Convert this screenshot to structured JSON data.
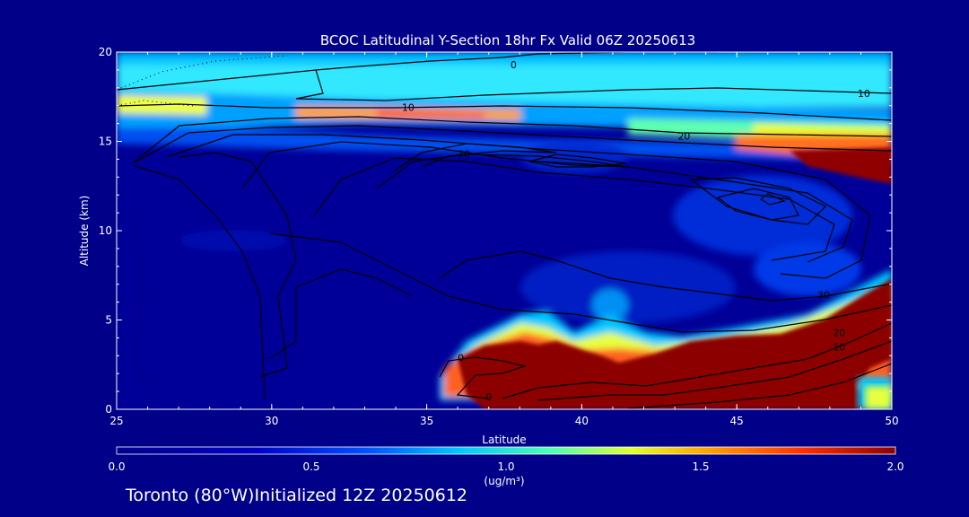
{
  "chart_data": {
    "type": "heatmap",
    "title": "BCOC Latitudinal Y-Section 18hr  Fx Valid 06Z 20250613",
    "xlabel": "Latitude",
    "ylabel": "Altitude (km)",
    "xlim": [
      25,
      50
    ],
    "ylim": [
      0,
      20
    ],
    "x_ticks": [
      "25",
      "30",
      "35",
      "40",
      "45",
      "50"
    ],
    "y_ticks": [
      "0",
      "5",
      "10",
      "15",
      "20"
    ],
    "colorbar": {
      "min": 0.0,
      "max": 2.0,
      "ticks": [
        "0.0",
        "0.5",
        "1.0",
        "1.5",
        "2.0"
      ],
      "unit": "(ug/m³)"
    },
    "contour_labels": [
      {
        "text": "0",
        "lat": 37.8,
        "alt": 19.3
      },
      {
        "text": "10",
        "lat": 49.1,
        "alt": 17.7
      },
      {
        "text": "10",
        "lat": 34.4,
        "alt": 16.9
      },
      {
        "text": "20",
        "lat": 43.3,
        "alt": 15.3
      },
      {
        "text": "30",
        "lat": 36.2,
        "alt": 14.3
      },
      {
        "text": "30",
        "lat": 47.8,
        "alt": 6.4
      },
      {
        "text": "20",
        "lat": 48.3,
        "alt": 4.3
      },
      {
        "text": "10",
        "lat": 48.3,
        "alt": 3.5
      },
      {
        "text": "0",
        "lat": 36.1,
        "alt": 2.9
      },
      {
        "text": "0",
        "lat": 37.0,
        "alt": 0.7
      }
    ]
  },
  "footer": "Toronto (80°W)Initialized 12Z 20250612",
  "colors": {
    "background": "#000088",
    "scale": [
      "#00008c",
      "#0000c8",
      "#0050ff",
      "#00c8ff",
      "#50ffb0",
      "#e0ff30",
      "#ffa000",
      "#ff3000",
      "#8c0000"
    ]
  }
}
